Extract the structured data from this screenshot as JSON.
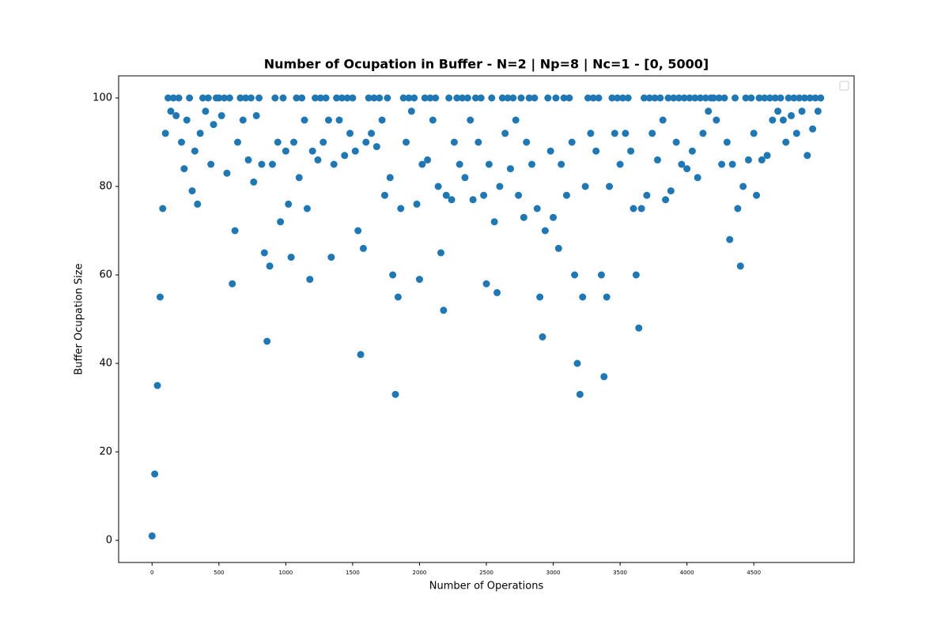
{
  "chart_data": {
    "type": "scatter",
    "title": "Number of Ocupation in Buffer - N=2 | Np=8 | Nc=1 - [0, 5000]",
    "x_label": "Number of Operations",
    "y_label": "Buffer Ocupation Size",
    "color": "#1f77b4",
    "xlim": [
      -250,
      5250
    ],
    "ylim": [
      -5,
      105
    ],
    "xticks": [
      0,
      500,
      1000,
      1500,
      2000,
      2500,
      3000,
      3500,
      4000,
      4500
    ],
    "yticks": [
      0,
      20,
      40,
      60,
      80,
      100
    ],
    "grid": false,
    "x": [
      0,
      20,
      40,
      60,
      80,
      100,
      120,
      140,
      160,
      180,
      200,
      220,
      240,
      260,
      280,
      300,
      320,
      340,
      360,
      380,
      400,
      420,
      440,
      460,
      480,
      500,
      520,
      540,
      560,
      580,
      600,
      620,
      640,
      660,
      680,
      700,
      720,
      740,
      760,
      780,
      800,
      820,
      840,
      860,
      880,
      900,
      920,
      940,
      960,
      980,
      1000,
      1020,
      1040,
      1060,
      1080,
      1100,
      1120,
      1140,
      1160,
      1180,
      1200,
      1220,
      1240,
      1260,
      1280,
      1300,
      1320,
      1340,
      1360,
      1380,
      1400,
      1420,
      1440,
      1460,
      1480,
      1500,
      1520,
      1540,
      1560,
      1580,
      1600,
      1620,
      1640,
      1660,
      1680,
      1700,
      1720,
      1740,
      1760,
      1780,
      1800,
      1820,
      1840,
      1860,
      1880,
      1900,
      1920,
      1940,
      1960,
      1980,
      2000,
      2020,
      2040,
      2060,
      2080,
      2100,
      2120,
      2140,
      2160,
      2180,
      2200,
      2220,
      2240,
      2260,
      2280,
      2300,
      2320,
      2340,
      2360,
      2380,
      2400,
      2420,
      2440,
      2460,
      2480,
      2500,
      2520,
      2540,
      2560,
      2580,
      2600,
      2620,
      2640,
      2660,
      2680,
      2700,
      2720,
      2740,
      2760,
      2780,
      2800,
      2820,
      2840,
      2860,
      2880,
      2900,
      2920,
      2940,
      2960,
      2980,
      3000,
      3020,
      3040,
      3060,
      3080,
      3100,
      3120,
      3140,
      3160,
      3180,
      3200,
      3220,
      3240,
      3260,
      3280,
      3300,
      3320,
      3340,
      3360,
      3380,
      3400,
      3420,
      3440,
      3460,
      3480,
      3500,
      3520,
      3540,
      3560,
      3580,
      3600,
      3620,
      3640,
      3660,
      3680,
      3700,
      3720,
      3740,
      3760,
      3780,
      3800,
      3820,
      3840,
      3860,
      3880,
      3900,
      3920,
      3940,
      3960,
      3980,
      4000,
      4020,
      4040,
      4060,
      4080,
      4100,
      4120,
      4140,
      4160,
      4180,
      4200,
      4220,
      4240,
      4260,
      4280,
      4300,
      4320,
      4340,
      4360,
      4380,
      4400,
      4420,
      4440,
      4460,
      4480,
      4500,
      4520,
      4540,
      4560,
      4580,
      4600,
      4620,
      4640,
      4660,
      4680,
      4700,
      4720,
      4740,
      4760,
      4780,
      4800,
      4820,
      4840,
      4860,
      4880,
      4900,
      4920,
      4940,
      4960,
      4980,
      5000
    ],
    "values": [
      1,
      15,
      35,
      55,
      75,
      92,
      100,
      97,
      100,
      96,
      100,
      90,
      84,
      95,
      100,
      79,
      88,
      76,
      92,
      100,
      97,
      100,
      85,
      94,
      100,
      100,
      96,
      100,
      83,
      100,
      58,
      70,
      90,
      100,
      95,
      100,
      86,
      100,
      81,
      96,
      100,
      85,
      65,
      45,
      62,
      85,
      100,
      90,
      72,
      100,
      88,
      76,
      64,
      90,
      100,
      82,
      100,
      95,
      75,
      59,
      88,
      100,
      86,
      100,
      90,
      100,
      95,
      64,
      85,
      100,
      95,
      100,
      87,
      100,
      92,
      100,
      88,
      70,
      42,
      66,
      90,
      100,
      92,
      100,
      89,
      100,
      95,
      78,
      100,
      82,
      60,
      33,
      55,
      75,
      100,
      90,
      100,
      97,
      100,
      76,
      59,
      85,
      100,
      86,
      100,
      95,
      100,
      80,
      65,
      52,
      78,
      100,
      77,
      90,
      100,
      85,
      100,
      82,
      100,
      95,
      77,
      100,
      90,
      100,
      78,
      58,
      85,
      100,
      72,
      56,
      80,
      100,
      92,
      100,
      84,
      100,
      95,
      78,
      100,
      73,
      90,
      100,
      85,
      100,
      75,
      55,
      46,
      70,
      100,
      88,
      73,
      100,
      66,
      85,
      100,
      78,
      100,
      90,
      60,
      40,
      33,
      55,
      80,
      100,
      92,
      100,
      88,
      100,
      60,
      37,
      55,
      80,
      100,
      92,
      100,
      85,
      100,
      92,
      100,
      88,
      75,
      60,
      48,
      75,
      100,
      78,
      100,
      92,
      100,
      86,
      100,
      95,
      77,
      100,
      79,
      100,
      90,
      100,
      85,
      100,
      84,
      100,
      88,
      100,
      82,
      100,
      92,
      100,
      97,
      100,
      100,
      95,
      100,
      85,
      100,
      90,
      68,
      85,
      100,
      75,
      62,
      80,
      100,
      86,
      100,
      92,
      78,
      100,
      86,
      100,
      87,
      100,
      95,
      100,
      97,
      100,
      95,
      90,
      100,
      96,
      100,
      92,
      100,
      97,
      100,
      87,
      100,
      93,
      100,
      97,
      100
    ]
  }
}
